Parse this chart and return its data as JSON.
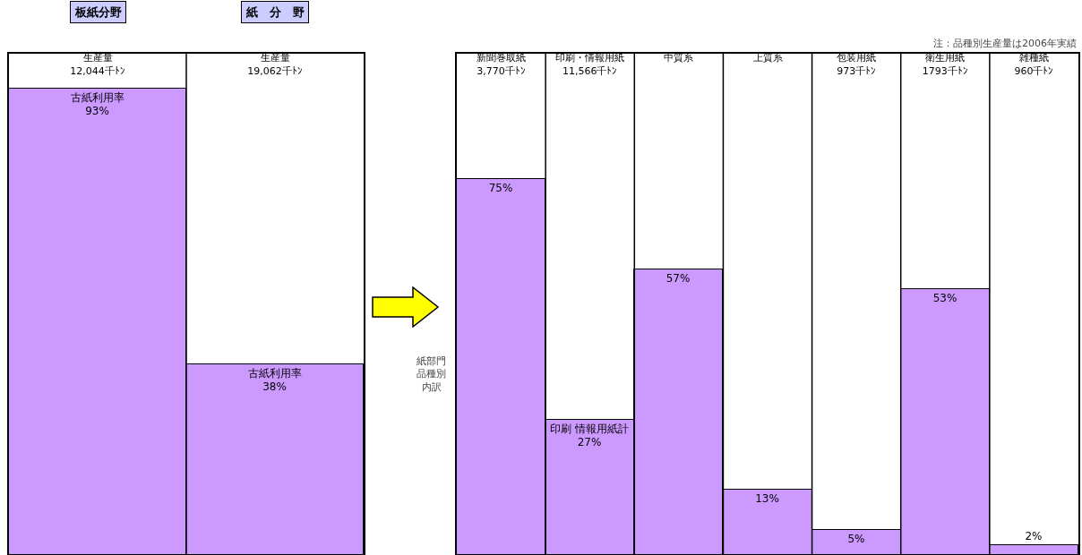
{
  "chart_data": [
    {
      "type": "bar",
      "categories": [
        "生産量\n12,044千ﾄﾝ",
        "生産量\n19,062千ﾄﾝ"
      ],
      "values": [
        93,
        38
      ],
      "value_labels": [
        "古紙利用率\n93%",
        "古紙利用率\n38%"
      ],
      "color": "#cc99ff",
      "ylim": [
        0,
        100
      ],
      "tick_labels": "x",
      "grid": false,
      "legend": false,
      "annotations": [
        "板紙分野",
        "紙　分　野"
      ]
    },
    {
      "type": "bar",
      "categories": [
        "新聞巻取紙\n3,770千ﾄﾝ",
        "印刷・情報用紙\n11,566千ﾄﾝ",
        "中質系",
        "上質系",
        "包装用紙\n973千ﾄﾝ",
        "衛生用紙\n1793千ﾄﾝ",
        "雑種紙\n960千ﾄﾝ"
      ],
      "values": [
        75,
        27,
        57,
        13,
        5,
        53,
        2
      ],
      "value_labels": [
        "75%",
        "印刷 情報用紙計\n27%",
        "57%",
        "13%",
        "5%",
        "53%",
        "2%"
      ],
      "color": "#cc99ff",
      "ylim": [
        0,
        100
      ],
      "tick_labels": "x",
      "grid": false,
      "legend": false,
      "annotations": [
        "注：品種別生産量は2006年実績",
        "紙部門品種別内訳"
      ]
    }
  ]
}
